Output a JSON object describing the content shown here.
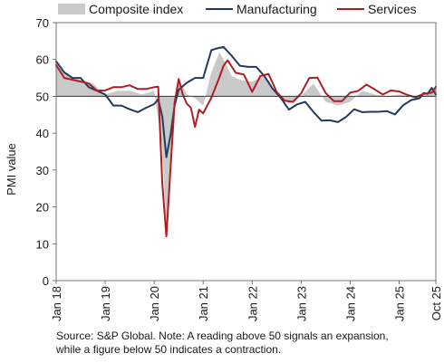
{
  "chart_data": {
    "type": "line",
    "ylabel": "PMI value",
    "xlabel": "",
    "ylim": [
      0,
      70
    ],
    "yticks": [
      0,
      10,
      20,
      30,
      40,
      50,
      60,
      70
    ],
    "xlim": [
      "2018-01",
      "2025-10"
    ],
    "xticks": [
      {
        "date": "2018-01",
        "label": "Jan 18"
      },
      {
        "date": "2019-01",
        "label": "Jan 19"
      },
      {
        "date": "2020-01",
        "label": "Jan 20"
      },
      {
        "date": "2021-01",
        "label": "Jan 21"
      },
      {
        "date": "2022-01",
        "label": "Jan 22"
      },
      {
        "date": "2023-01",
        "label": "Jan 23"
      },
      {
        "date": "2024-01",
        "label": "Jan 24"
      },
      {
        "date": "2025-01",
        "label": "Jan 25"
      },
      {
        "date": "2025-10",
        "label": "Oct 25"
      }
    ],
    "reference_line": 50,
    "grid": false,
    "legend_position": "top",
    "series": [
      {
        "name": "Composite index",
        "style": "area",
        "color": "#c9c9c9",
        "x": [
          "2018-01",
          "2018-04",
          "2018-07",
          "2018-10",
          "2019-01",
          "2019-04",
          "2019-07",
          "2019-10",
          "2020-01",
          "2020-03",
          "2020-04",
          "2020-05",
          "2020-06",
          "2020-07",
          "2020-09",
          "2020-11",
          "2021-01",
          "2021-03",
          "2021-05",
          "2021-06",
          "2021-08",
          "2021-10",
          "2022-01",
          "2022-04",
          "2022-07",
          "2022-10",
          "2023-01",
          "2023-04",
          "2023-07",
          "2023-10",
          "2024-01",
          "2024-04",
          "2024-07",
          "2024-10",
          "2025-01",
          "2025-04",
          "2025-07",
          "2025-10"
        ],
        "values": [
          58.5,
          55.5,
          54.5,
          53.5,
          50.5,
          51.5,
          51.5,
          50.5,
          51.5,
          36.0,
          13.5,
          30.5,
          47.5,
          54.9,
          50.5,
          49.5,
          47.5,
          56.5,
          62.0,
          60.0,
          55.5,
          54.5,
          54.0,
          55.5,
          51.0,
          48.0,
          50.0,
          53.5,
          48.5,
          47.5,
          48.5,
          51.5,
          50.5,
          50.0,
          50.5,
          50.0,
          50.5,
          52.5
        ]
      },
      {
        "name": "Manufacturing",
        "color": "#233a5e",
        "x": [
          "2018-01",
          "2018-03",
          "2018-05",
          "2018-07",
          "2018-09",
          "2018-11",
          "2019-01",
          "2019-03",
          "2019-05",
          "2019-07",
          "2019-09",
          "2019-11",
          "2020-01",
          "2020-02",
          "2020-03",
          "2020-04",
          "2020-05",
          "2020-06",
          "2020-07",
          "2020-09",
          "2020-11",
          "2021-01",
          "2021-03",
          "2021-04",
          "2021-06",
          "2021-08",
          "2021-10",
          "2021-12",
          "2022-02",
          "2022-04",
          "2022-06",
          "2022-08",
          "2022-10",
          "2022-12",
          "2023-02",
          "2023-04",
          "2023-06",
          "2023-08",
          "2023-10",
          "2023-12",
          "2024-02",
          "2024-04",
          "2024-06",
          "2024-08",
          "2024-10",
          "2024-12",
          "2025-02",
          "2025-04",
          "2025-06",
          "2025-07",
          "2025-08",
          "2025-09",
          "2025-10"
        ],
        "values": [
          59.5,
          56.5,
          55.0,
          55.0,
          52.5,
          51.5,
          50.5,
          47.5,
          47.5,
          46.5,
          45.7,
          46.9,
          47.9,
          49.2,
          44.5,
          33.5,
          39.5,
          47.5,
          51.8,
          53.7,
          55.0,
          55.0,
          62.5,
          62.9,
          63.4,
          61.0,
          58.3,
          58.0,
          58.0,
          55.5,
          52.1,
          49.6,
          46.4,
          47.8,
          48.5,
          45.8,
          43.4,
          43.5,
          43.0,
          44.4,
          46.5,
          45.7,
          45.8,
          45.8,
          46.0,
          45.1,
          47.6,
          49.0,
          49.5,
          50.9,
          50.7,
          52.3,
          50.5
        ]
      },
      {
        "name": "Services",
        "color": "#b01e23",
        "x": [
          "2018-01",
          "2018-03",
          "2018-05",
          "2018-07",
          "2018-09",
          "2018-11",
          "2019-01",
          "2019-03",
          "2019-05",
          "2019-07",
          "2019-09",
          "2019-11",
          "2020-01",
          "2020-02",
          "2020-03",
          "2020-04",
          "2020-05",
          "2020-06",
          "2020-07",
          "2020-08",
          "2020-09",
          "2020-10",
          "2020-11",
          "2020-12",
          "2021-01",
          "2021-03",
          "2021-05",
          "2021-06",
          "2021-07",
          "2021-09",
          "2021-11",
          "2022-01",
          "2022-03",
          "2022-05",
          "2022-07",
          "2022-09",
          "2022-11",
          "2023-01",
          "2023-03",
          "2023-05",
          "2023-07",
          "2023-09",
          "2023-11",
          "2024-01",
          "2024-03",
          "2024-05",
          "2024-07",
          "2024-09",
          "2024-11",
          "2025-01",
          "2025-03",
          "2025-05",
          "2025-07",
          "2025-09",
          "2025-10"
        ],
        "values": [
          58.5,
          55.0,
          54.5,
          54.0,
          53.5,
          51.5,
          51.6,
          52.5,
          52.5,
          53.0,
          52.0,
          52.0,
          52.5,
          52.6,
          26.4,
          12.0,
          30.5,
          48.3,
          54.7,
          50.5,
          48.0,
          46.9,
          41.7,
          46.4,
          45.4,
          49.6,
          55.2,
          58.3,
          59.8,
          56.4,
          55.9,
          51.2,
          55.5,
          56.1,
          51.2,
          48.8,
          48.5,
          50.8,
          55.0,
          55.1,
          50.9,
          48.7,
          48.7,
          51.0,
          51.5,
          53.2,
          51.9,
          50.5,
          51.6,
          51.3,
          50.4,
          49.7,
          50.7,
          51.0,
          52.6
        ]
      }
    ]
  },
  "figure_note": {
    "line1": "Source: S&P Global. Note: A reading above 50 signals an expansion,",
    "line2": "while a figure below 50 indicates a contraction."
  }
}
